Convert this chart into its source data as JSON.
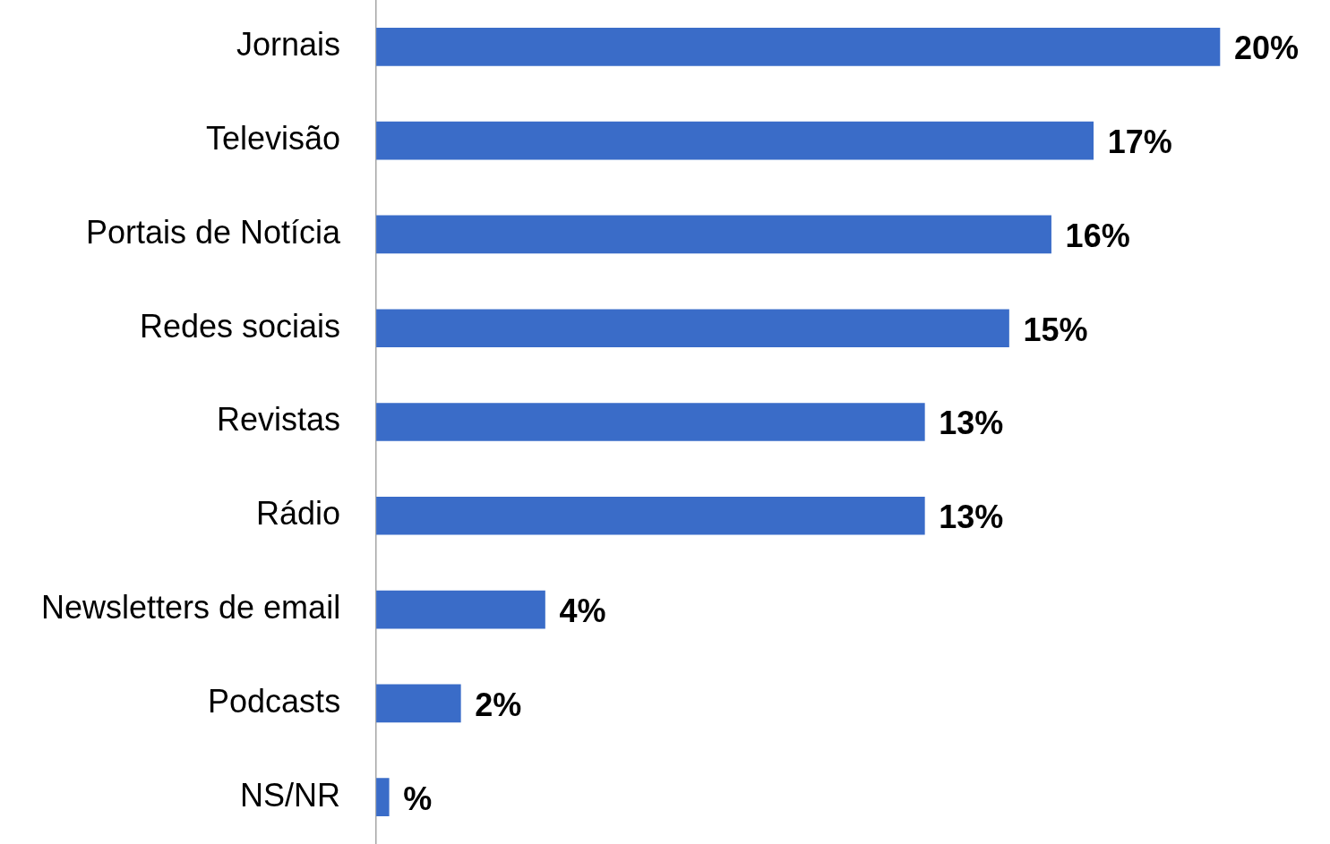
{
  "chart_data": {
    "type": "bar",
    "orientation": "horizontal",
    "categories": [
      "Jornais",
      "Televisão",
      "Portais de Notícia",
      "Redes sociais",
      "Revistas",
      "Rádio",
      "Newsletters de email",
      "Podcasts",
      "NS/NR"
    ],
    "values": [
      20,
      17,
      16,
      15,
      13,
      13,
      4,
      2,
      0.3
    ],
    "value_labels": [
      "20%",
      "17%",
      "16%",
      "15%",
      "13%",
      "13%",
      "4%",
      "2%",
      "%"
    ],
    "color": "#3a6cc8",
    "tick_labels": "y"
  }
}
